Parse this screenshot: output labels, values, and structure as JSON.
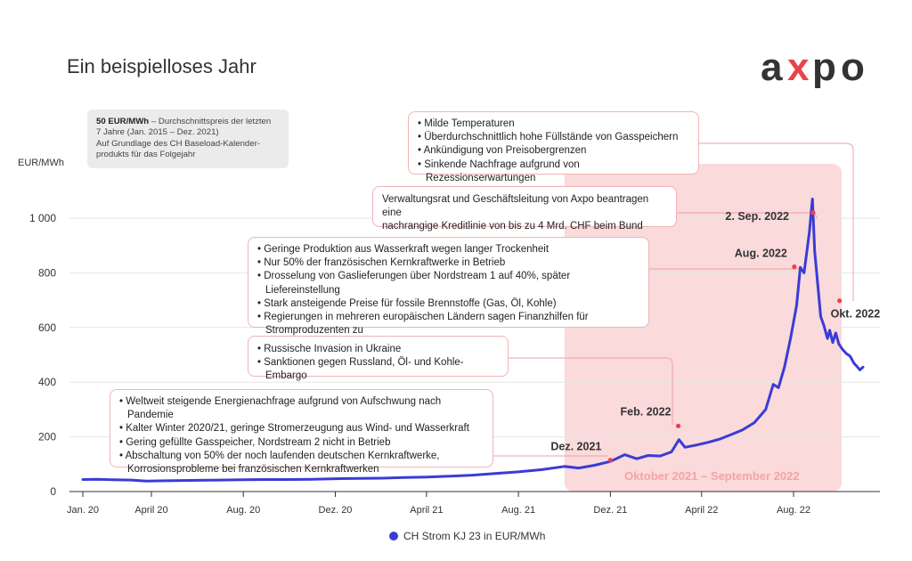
{
  "page": {
    "title": "Ein beispielloses Jahr",
    "logo_text": "axpo"
  },
  "avg_box": {
    "bold": "50 EUR/MWh",
    "line1": " – Durchschnittspreis der letzten",
    "line2": "7 Jahre (Jan. 2015 – Dez. 2021)",
    "line3": "Auf Grundlage des CH Baseload-Kalender-",
    "line4": "produkts für das Folgejahr"
  },
  "callouts": {
    "c1": [
      "Milde Temperaturen",
      "Überdurchschnittlich hohe Füllstände von Gasspeichern",
      "Ankündigung von Preisobergrenzen",
      "Sinkende Nachfrage aufgrund von Rezessionserwartungen"
    ],
    "c2_line1": "Verwaltungsrat und Geschäftsleitung von Axpo beantragen eine",
    "c2_line2": "nachrangige Kreditlinie von bis zu 4 Mrd. CHF beim Bund",
    "c3": [
      "Geringe Produktion aus Wasserkraft wegen langer Trockenheit",
      "Nur 50% der französischen Kernkraftwerke in Betrieb",
      "Drosselung von Gaslieferungen über Nordstream 1 auf 40%, später Liefereinstellung",
      "Stark ansteigende Preise für fossile Brennstoffe (Gas, Öl, Kohle)",
      "Regierungen in mehreren europäischen Ländern sagen Finanzhilfen für Stromproduzenten zu"
    ],
    "c4": [
      "Russische Invasion in Ukraine",
      "Sanktionen gegen Russland, Öl- und Kohle-Embargo"
    ],
    "c5": [
      "Weltweit steigende Energienachfrage aufgrund von Aufschwung nach Pandemie",
      "Kalter Winter 2020/21, geringe Stromerzeugung aus Wind- und Wasserkraft",
      "Gering gefüllte Gasspeicher, Nordstream 2 nicht in Betrieb",
      "Abschaltung von 50% der noch laufenden deutschen Kernkraftwerke, Korrosionsprobleme bei französischen Kernkraftwerken"
    ]
  },
  "colors": {
    "line": "#3b3bd6",
    "highlight": "#fadadb",
    "accent": "#e8434b",
    "connector": "#f0a0a4",
    "grid": "#e6e6e6"
  },
  "chart_data": {
    "type": "line",
    "ylabel": "EUR/MWh",
    "ylim": [
      0,
      1000
    ],
    "yticks": [
      0,
      200,
      400,
      600,
      800,
      1000
    ],
    "ytick_labels": [
      "0",
      "200",
      "400",
      "600",
      "800",
      "1 000"
    ],
    "xtick_labels": [
      {
        "label": "Jan. 20",
        "date": "2020-01-01"
      },
      {
        "label": "April 20",
        "date": "2020-04-01"
      },
      {
        "label": "Aug. 20",
        "date": "2020-08-01"
      },
      {
        "label": "Dez. 20",
        "date": "2020-12-01"
      },
      {
        "label": "April 21",
        "date": "2021-04-01"
      },
      {
        "label": "Aug. 21",
        "date": "2021-08-01"
      },
      {
        "label": "Dez. 21",
        "date": "2021-12-01"
      },
      {
        "label": "April 22",
        "date": "2022-04-01"
      },
      {
        "label": "Aug. 22",
        "date": "2022-08-01"
      }
    ],
    "highlight_period": {
      "label": "Oktober 2021 – September 2022",
      "start": "2021-10-01",
      "end": "2022-09-30"
    },
    "series": [
      {
        "name": "CH Strom KJ 23 in EUR/MWh",
        "points": [
          [
            "2020-01-01",
            44
          ],
          [
            "2020-01-20",
            45
          ],
          [
            "2020-02-10",
            43
          ],
          [
            "2020-03-05",
            42
          ],
          [
            "2020-03-25",
            38
          ],
          [
            "2020-04-10",
            39
          ],
          [
            "2020-05-01",
            40
          ],
          [
            "2020-06-01",
            41
          ],
          [
            "2020-07-01",
            42
          ],
          [
            "2020-08-01",
            43
          ],
          [
            "2020-09-01",
            44
          ],
          [
            "2020-10-01",
            44
          ],
          [
            "2020-11-01",
            45
          ],
          [
            "2020-12-01",
            47
          ],
          [
            "2021-01-01",
            48
          ],
          [
            "2021-02-01",
            49
          ],
          [
            "2021-03-01",
            51
          ],
          [
            "2021-04-01",
            53
          ],
          [
            "2021-05-01",
            56
          ],
          [
            "2021-06-01",
            60
          ],
          [
            "2021-07-01",
            66
          ],
          [
            "2021-08-01",
            72
          ],
          [
            "2021-09-01",
            80
          ],
          [
            "2021-10-01",
            92
          ],
          [
            "2021-10-20",
            86
          ],
          [
            "2021-11-10",
            96
          ],
          [
            "2021-12-01",
            110
          ],
          [
            "2021-12-20",
            135
          ],
          [
            "2022-01-05",
            120
          ],
          [
            "2022-01-20",
            132
          ],
          [
            "2022-02-05",
            130
          ],
          [
            "2022-02-20",
            145
          ],
          [
            "2022-03-02",
            190
          ],
          [
            "2022-03-10",
            162
          ],
          [
            "2022-03-25",
            170
          ],
          [
            "2022-04-10",
            180
          ],
          [
            "2022-04-25",
            192
          ],
          [
            "2022-05-10",
            208
          ],
          [
            "2022-05-25",
            225
          ],
          [
            "2022-06-10",
            252
          ],
          [
            "2022-06-25",
            300
          ],
          [
            "2022-07-05",
            392
          ],
          [
            "2022-07-12",
            380
          ],
          [
            "2022-07-20",
            455
          ],
          [
            "2022-07-28",
            560
          ],
          [
            "2022-08-05",
            680
          ],
          [
            "2022-08-10",
            820
          ],
          [
            "2022-08-15",
            800
          ],
          [
            "2022-08-22",
            950
          ],
          [
            "2022-08-26",
            1070
          ],
          [
            "2022-08-29",
            880
          ],
          [
            "2022-09-02",
            760
          ],
          [
            "2022-09-06",
            640
          ],
          [
            "2022-09-10",
            610
          ],
          [
            "2022-09-15",
            560
          ],
          [
            "2022-09-18",
            590
          ],
          [
            "2022-09-22",
            545
          ],
          [
            "2022-09-26",
            580
          ],
          [
            "2022-09-30",
            540
          ],
          [
            "2022-10-05",
            520
          ],
          [
            "2022-10-10",
            505
          ],
          [
            "2022-10-15",
            495
          ],
          [
            "2022-10-20",
            470
          ],
          [
            "2022-10-25",
            455
          ],
          [
            "2022-10-28",
            445
          ],
          [
            "2022-11-01",
            455
          ]
        ]
      }
    ],
    "annotations": [
      {
        "label": "Dez. 2021",
        "date": "2021-12-01",
        "value": 115
      },
      {
        "label": "Feb. 2022",
        "date": "2022-03-01",
        "value": 240
      },
      {
        "label": "Aug. 2022",
        "date": "2022-08-02",
        "value": 822
      },
      {
        "label": "2. Sep. 2022",
        "date": "2022-08-27",
        "value": 1020
      },
      {
        "label": "Okt. 2022",
        "date": "2022-10-01",
        "value": 698
      }
    ]
  }
}
